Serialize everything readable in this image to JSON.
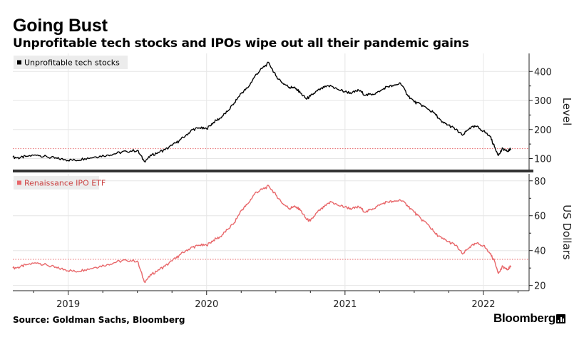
{
  "title": "Going Bust",
  "subtitle": "Unprofitable tech stocks and IPOs wipe out all their pandemic gains",
  "source": "Source: Goldman Sachs, Bloomberg",
  "brand": "Bloomberg",
  "colors": {
    "top_series": "#000000",
    "bottom_series": "#e8676a",
    "reference_line": "#e8676a",
    "divider": "#333333",
    "grid": "#e6e6e6"
  },
  "chart_data": [
    {
      "type": "line",
      "legend": "Unprofitable tech stocks",
      "ylabel": "Level",
      "ylim": [
        62,
        462
      ],
      "yticks": [
        100,
        200,
        300,
        400
      ],
      "reference_value": 134,
      "x_tick_labels": [
        "2019",
        "2020",
        "2021",
        "2022"
      ],
      "x_tick_dates": [
        2019.0,
        2020.0,
        2021.0,
        2022.0
      ],
      "xlim": [
        2018.6,
        2022.33
      ],
      "series": [
        {
          "name": "Unprofitable tech stocks",
          "x": [
            2018.6,
            2018.65,
            2018.7,
            2018.78,
            2018.85,
            2018.92,
            2018.98,
            2019.05,
            2019.12,
            2019.2,
            2019.28,
            2019.35,
            2019.42,
            2019.5,
            2019.55,
            2019.6,
            2019.65,
            2019.7,
            2019.75,
            2019.8,
            2019.85,
            2019.9,
            2019.95,
            2020.0,
            2020.05,
            2020.1,
            2020.15,
            2020.2,
            2020.25,
            2020.3,
            2020.35,
            2020.4,
            2020.45,
            2020.5,
            2020.55,
            2020.6,
            2020.62,
            2020.65,
            2020.68,
            2020.72,
            2020.75,
            2020.8,
            2020.85,
            2020.9,
            2020.95,
            2021.0,
            2021.05,
            2021.1,
            2021.15,
            2021.2,
            2021.25,
            2021.3,
            2021.35,
            2021.4,
            2021.45,
            2021.5,
            2021.55,
            2021.6,
            2021.65,
            2021.7,
            2021.75,
            2021.8,
            2021.85,
            2021.9,
            2021.95,
            2022.0,
            2022.05,
            2022.08,
            2022.11,
            2022.14,
            2022.17,
            2022.2
          ],
          "y": [
            105,
            102,
            108,
            112,
            105,
            100,
            96,
            94,
            100,
            106,
            112,
            118,
            125,
            128,
            90,
            110,
            122,
            130,
            145,
            160,
            180,
            200,
            205,
            202,
            225,
            240,
            262,
            292,
            325,
            345,
            385,
            410,
            430,
            385,
            360,
            345,
            345,
            340,
            325,
            305,
            315,
            333,
            345,
            350,
            338,
            330,
            326,
            335,
            318,
            322,
            330,
            348,
            350,
            360,
            320,
            295,
            285,
            270,
            255,
            225,
            215,
            200,
            180,
            205,
            210,
            195,
            175,
            140,
            112,
            135,
            125,
            133
          ]
        }
      ]
    },
    {
      "type": "line",
      "legend": "Renaissance IPO ETF",
      "ylabel": "US Dollars",
      "ylim": [
        17,
        84
      ],
      "yticks": [
        20,
        40,
        60,
        80
      ],
      "reference_value": 35,
      "x_tick_labels": [
        "2019",
        "2020",
        "2021",
        "2022"
      ],
      "x_tick_dates": [
        2019.0,
        2020.0,
        2021.0,
        2022.0
      ],
      "xlim": [
        2018.6,
        2022.33
      ],
      "series": [
        {
          "name": "Renaissance IPO ETF",
          "x": [
            2018.6,
            2018.65,
            2018.7,
            2018.78,
            2018.85,
            2018.92,
            2018.98,
            2019.05,
            2019.12,
            2019.2,
            2019.28,
            2019.35,
            2019.42,
            2019.5,
            2019.55,
            2019.6,
            2019.65,
            2019.7,
            2019.75,
            2019.8,
            2019.85,
            2019.9,
            2019.95,
            2020.0,
            2020.05,
            2020.1,
            2020.15,
            2020.2,
            2020.25,
            2020.3,
            2020.35,
            2020.4,
            2020.45,
            2020.5,
            2020.55,
            2020.6,
            2020.62,
            2020.65,
            2020.68,
            2020.72,
            2020.75,
            2020.8,
            2020.85,
            2020.9,
            2020.95,
            2021.0,
            2021.05,
            2021.1,
            2021.15,
            2021.2,
            2021.25,
            2021.3,
            2021.35,
            2021.4,
            2021.45,
            2021.5,
            2021.55,
            2021.6,
            2021.65,
            2021.7,
            2021.75,
            2021.8,
            2021.85,
            2021.9,
            2021.95,
            2022.0,
            2022.05,
            2022.08,
            2022.11,
            2022.14,
            2022.17,
            2022.2
          ],
          "y": [
            30,
            30.5,
            32,
            33,
            31.5,
            30,
            29,
            28,
            29,
            30.5,
            32,
            33.5,
            34.5,
            34,
            22,
            26,
            29,
            31,
            34,
            37,
            40,
            42,
            43,
            43,
            46,
            48,
            52,
            56,
            63,
            67,
            73,
            75,
            77,
            72,
            67,
            64,
            65,
            65,
            63,
            58,
            57,
            62,
            65,
            68,
            66,
            65,
            64,
            65,
            62,
            64,
            66,
            68,
            68,
            69,
            66,
            62,
            58,
            55,
            50,
            47,
            45,
            43,
            38,
            42,
            44,
            43,
            38,
            34,
            27,
            31,
            29,
            31
          ]
        }
      ]
    }
  ]
}
